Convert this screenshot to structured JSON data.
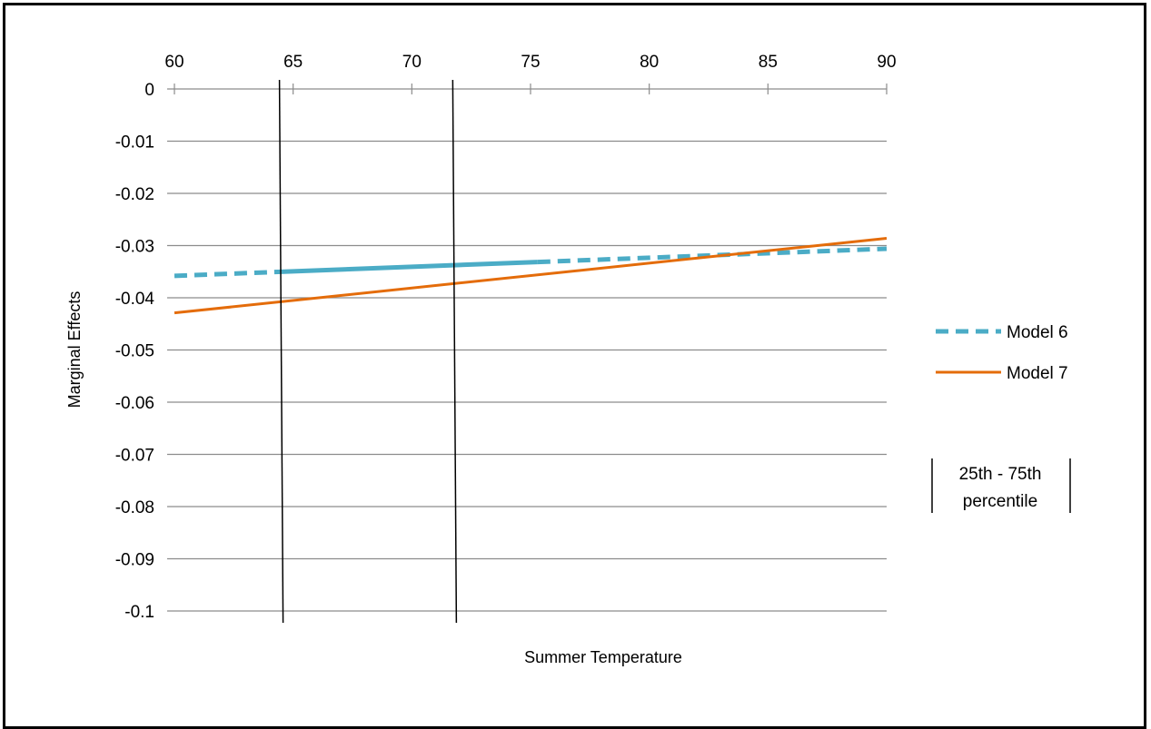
{
  "chart_data": {
    "type": "line",
    "title": "",
    "xlabel": "Summer Temperature",
    "ylabel": "Marginal Effects",
    "xlim": [
      60,
      90
    ],
    "ylim": [
      -0.1,
      0
    ],
    "x_ticks": [
      "60",
      "65",
      "70",
      "75",
      "80",
      "85",
      "90"
    ],
    "y_ticks": [
      "0",
      "-0.01",
      "-0.02",
      "-0.03",
      "-0.04",
      "-0.05",
      "-0.06",
      "-0.07",
      "-0.08",
      "-0.09",
      "-0.1"
    ],
    "grid": true,
    "legend_position": "right",
    "series": [
      {
        "name": "Model 6",
        "x": [
          60,
          90
        ],
        "y": [
          -0.0358,
          -0.0306
        ],
        "color": "#4bacc6",
        "style": "dashed, solid between 64.5 and 75.3"
      },
      {
        "name": "Model 7",
        "x": [
          60,
          90
        ],
        "y": [
          -0.0429,
          -0.0286
        ],
        "color": "#e46c0a",
        "style": "solid"
      }
    ],
    "percentile_lines": {
      "label": "25th - 75th percentile",
      "label_line1": "25th - 75th",
      "label_line2": "percentile",
      "x": [
        64.5,
        71.8
      ],
      "color": "#000000"
    }
  }
}
